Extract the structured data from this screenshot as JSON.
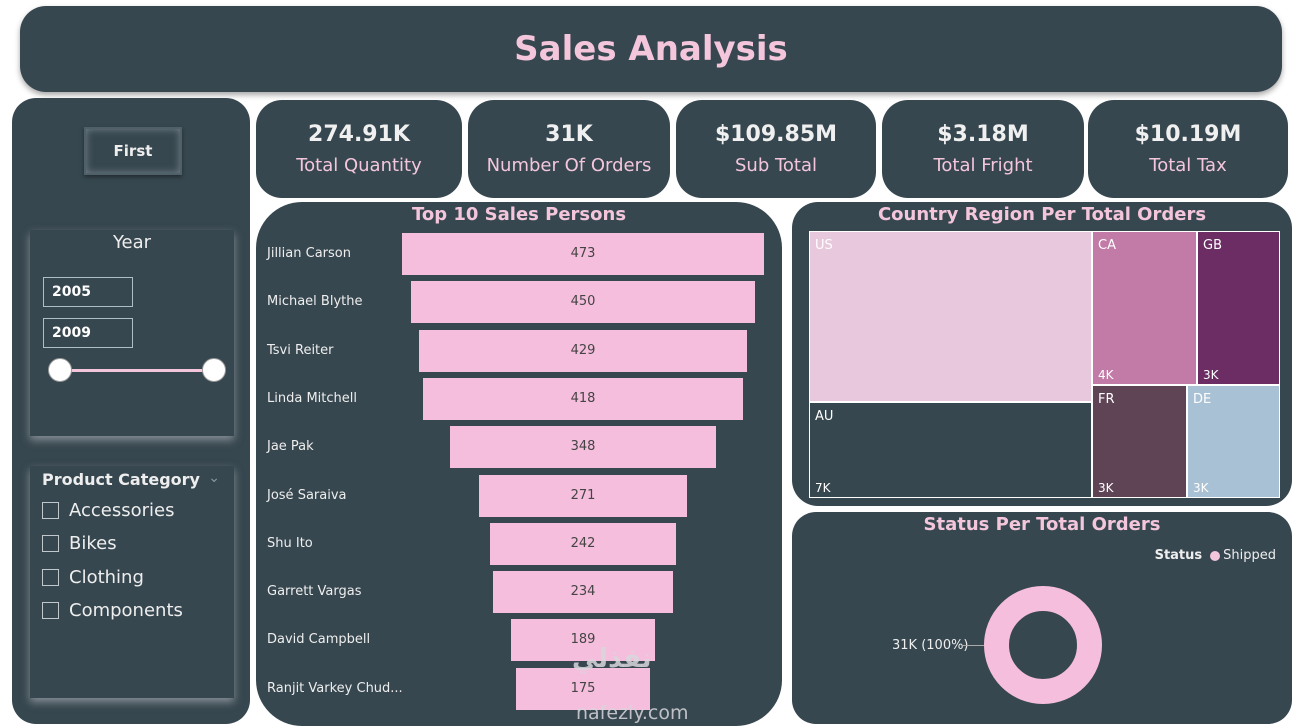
{
  "header": {
    "title": "Sales Analysis"
  },
  "filters": {
    "first_button": "First",
    "year": {
      "title": "Year",
      "start": "2005",
      "end": "2009"
    },
    "category": {
      "title": "Product Category",
      "items": [
        "Accessories",
        "Bikes",
        "Clothing",
        "Components"
      ]
    }
  },
  "kpis": [
    {
      "value": "274.91K",
      "label": "Total Quantity"
    },
    {
      "value": "31K",
      "label": "Number Of Orders"
    },
    {
      "value": "$109.85M",
      "label": "Sub Total"
    },
    {
      "value": "$3.18M",
      "label": "Total Fright"
    },
    {
      "value": "$10.19M",
      "label": "Total Tax"
    }
  ],
  "sales_persons": {
    "title": "Top 10 Sales Persons",
    "names": [
      "Jillian Carson",
      "Michael Blythe",
      "Tsvi Reiter",
      "Linda Mitchell",
      "Jae Pak",
      "José Saraiva",
      "Shu Ito",
      "Garrett Vargas",
      "David Campbell",
      "Ranjit Varkey Chud..."
    ],
    "values": [
      "473",
      "450",
      "429",
      "418",
      "348",
      "271",
      "242",
      "234",
      "189",
      "175"
    ]
  },
  "country": {
    "title": "Country Region Per Total Orders",
    "regions": [
      {
        "name": "US",
        "value": "",
        "color": "#e8c8dc"
      },
      {
        "name": "CA",
        "value": "4K",
        "color": "#c27aa7"
      },
      {
        "name": "GB",
        "value": "3K",
        "color": "#6b2d64"
      },
      {
        "name": "AU",
        "value": "7K",
        "color": "#37474f"
      },
      {
        "name": "FR",
        "value": "3K",
        "color": "#5f4456"
      },
      {
        "name": "DE",
        "value": "3K",
        "color": "#a9c1d4"
      }
    ]
  },
  "status": {
    "title": "Status Per Total Orders",
    "legend_title": "Status",
    "legend_item": "Shipped",
    "donut_label": "31K (100%)"
  },
  "chart_data": [
    {
      "type": "bar",
      "title": "Top 10 Sales Persons",
      "categories": [
        "Jillian Carson",
        "Michael Blythe",
        "Tsvi Reiter",
        "Linda Mitchell",
        "Jae Pak",
        "José Saraiva",
        "Shu Ito",
        "Garrett Vargas",
        "David Campbell",
        "Ranjit Varkey Chud..."
      ],
      "values": [
        473,
        450,
        429,
        418,
        348,
        271,
        242,
        234,
        189,
        175
      ]
    },
    {
      "type": "pie",
      "title": "Status Per Total Orders",
      "categories": [
        "Shipped"
      ],
      "values": [
        31000
      ]
    }
  ],
  "watermark": {
    "arabic": "نفذلي",
    "latin": "nafezly.com"
  }
}
